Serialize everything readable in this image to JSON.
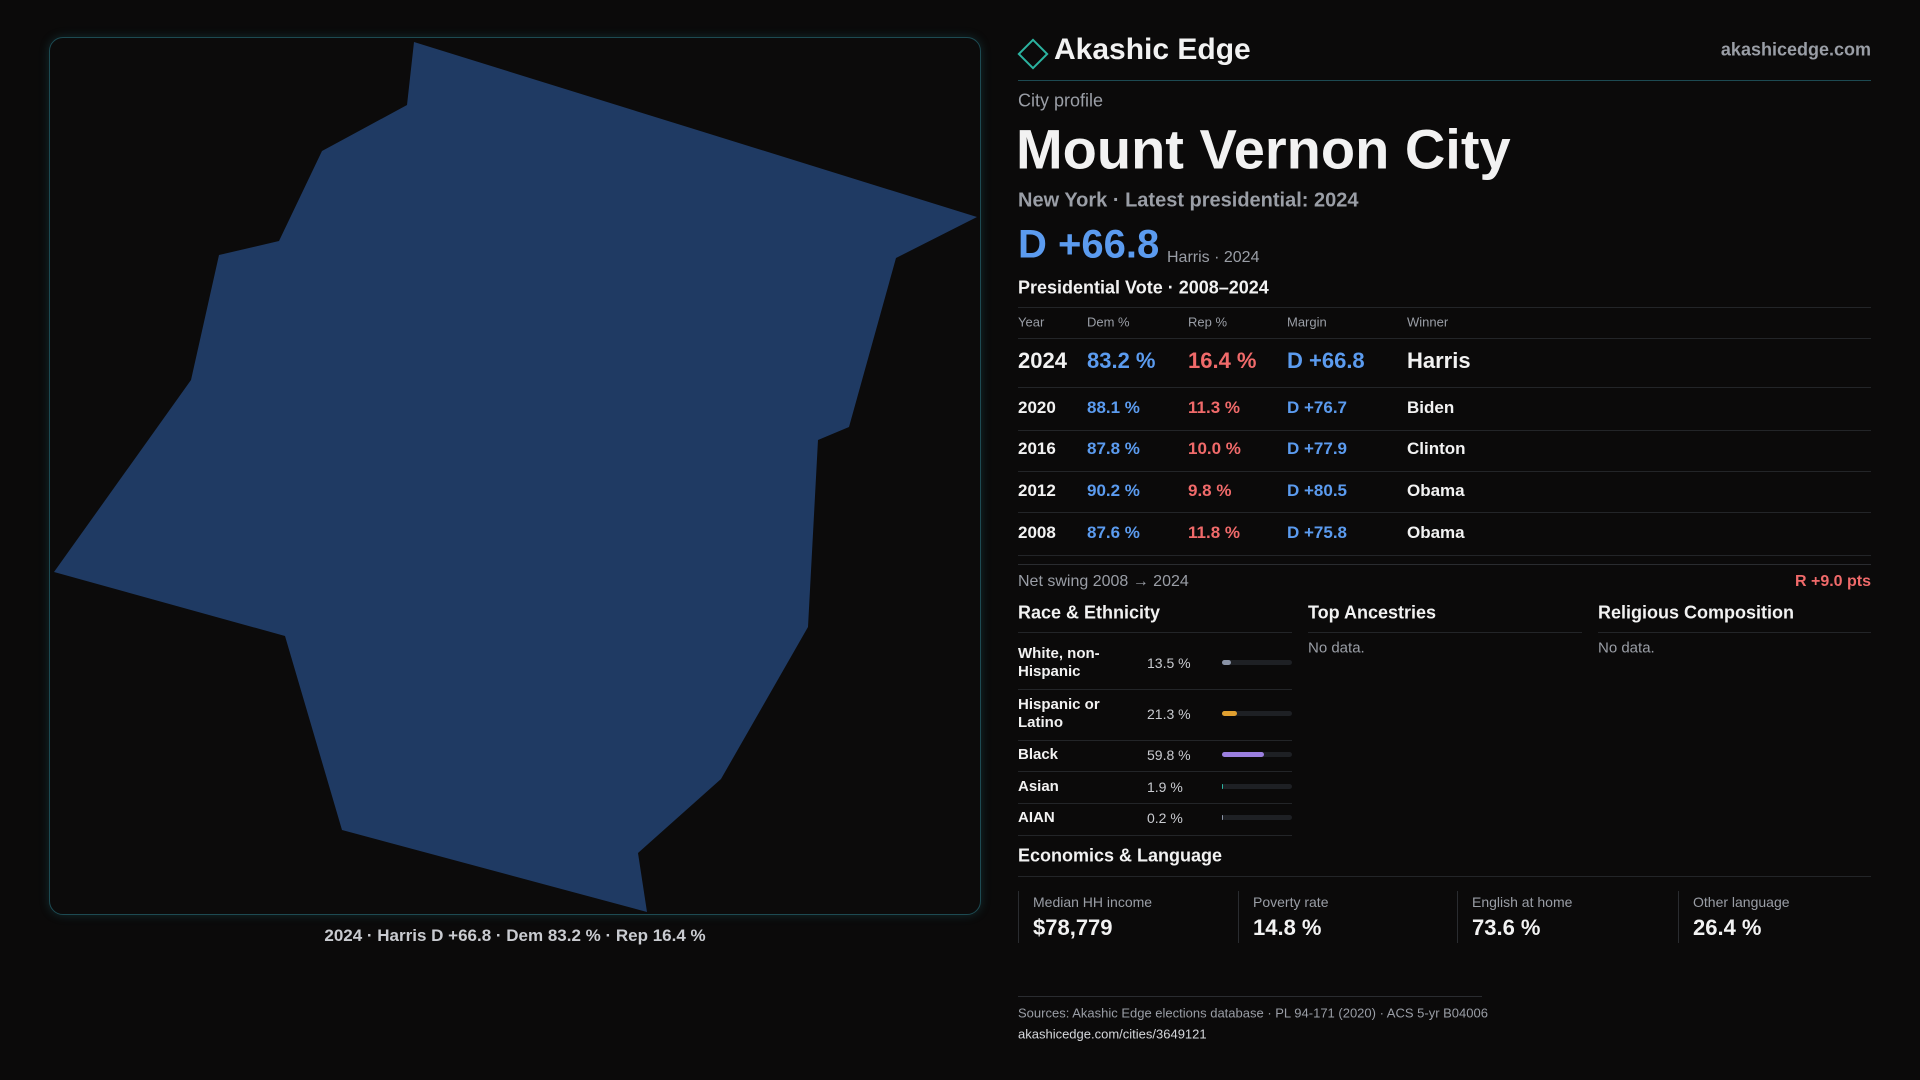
{
  "brand": {
    "name": "Akashic Edge",
    "url": "akashicedge.com"
  },
  "map": {
    "caption": "2024 · Harris D +66.8 · Dem 83.2 % · Rep 16.4 %"
  },
  "profile": {
    "kicker": "City profile",
    "title": "Mount Vernon City",
    "subtitle": "New York · Latest presidential: 2024",
    "margin": "D +66.8",
    "margin_note": "Harris · 2024"
  },
  "votes": {
    "title": "Presidential Vote · 2008–2024",
    "columns": [
      "Year",
      "Dem %",
      "Rep %",
      "Margin",
      "Winner"
    ],
    "rows": [
      [
        "2024",
        "83.2 %",
        "16.4 %",
        "D +66.8",
        "Harris"
      ],
      [
        "2020",
        "88.1 %",
        "11.3 %",
        "D +76.7",
        "Biden"
      ],
      [
        "2016",
        "87.8 %",
        "10.0 %",
        "D +77.9",
        "Clinton"
      ],
      [
        "2012",
        "90.2 %",
        "9.8 %",
        "D +80.5",
        "Obama"
      ],
      [
        "2008",
        "87.6 %",
        "11.8 %",
        "D +75.8",
        "Obama"
      ]
    ],
    "swing_label": "Net swing 2008 → 2024",
    "swing_value": "R +9.0 pts"
  },
  "race": {
    "title": "Race & Ethnicity",
    "labels": [
      "White, non-Hispanic",
      "Hispanic or Latino",
      "Black",
      "Asian",
      "AIAN"
    ],
    "values": [
      13.5,
      21.3,
      59.8,
      1.9,
      0.2
    ],
    "value_labels": [
      "13.5 %",
      "21.3 %",
      "59.8 %",
      "1.9 %",
      "0.2 %"
    ],
    "colors": [
      "#8a93a6",
      "#e0a030",
      "#9b7fe0",
      "#2bb3a0",
      "#8a93a6"
    ],
    "scale_max": 100
  },
  "ancestries": {
    "title": "Top Ancestries",
    "note": "No data."
  },
  "religion": {
    "title": "Religious Composition",
    "note": "No data."
  },
  "economics": {
    "title": "Economics & Language",
    "items": [
      {
        "label": "Median HH income",
        "value": "$78,779"
      },
      {
        "label": "Poverty rate",
        "value": "14.8 %"
      },
      {
        "label": "English at home",
        "value": "73.6 %"
      },
      {
        "label": "Other language",
        "value": "26.4 %"
      }
    ]
  },
  "footer": {
    "sources": "Sources: Akashic Edge elections database · PL 94-171 (2020) · ACS 5-yr B04006",
    "link": "akashicedge.com/cities/3649121"
  }
}
